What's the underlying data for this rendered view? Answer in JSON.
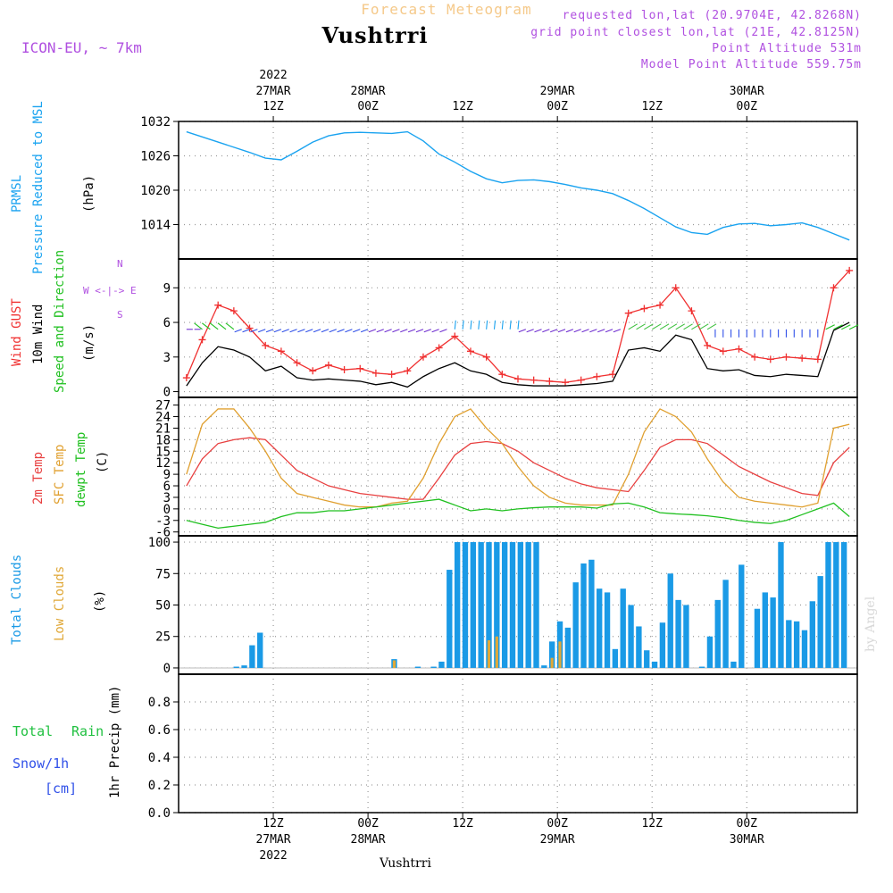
{
  "header": {
    "title": "Forecast Meteogram",
    "location": "Vushtrri",
    "model": "ICON-EU, ~ 7km",
    "requested": "requested lon,lat (20.9704E, 42.8268N)",
    "grid_point": "grid point closest lon,lat (21E, 42.8125N)",
    "point_altitude": "Point Altitude 531m",
    "model_altitude": "Model Point Altitude 559.75m",
    "footer_location": "Vushtrri",
    "watermark": "by Angel"
  },
  "time_axis": {
    "top_year": "2022",
    "ticks": [
      {
        "hour": 12,
        "top": "12Z",
        "date_top": "27MAR",
        "bottom": "12Z",
        "date_bottom": "27MAR",
        "year": "2022"
      },
      {
        "hour": 24,
        "top": "00Z",
        "date_top": "28MAR",
        "bottom": "00Z",
        "date_bottom": "28MAR",
        "year": ""
      },
      {
        "hour": 36,
        "top": "12Z",
        "date_top": "",
        "bottom": "12Z",
        "date_bottom": "",
        "year": ""
      },
      {
        "hour": 48,
        "top": "00Z",
        "date_top": "29MAR",
        "bottom": "00Z",
        "date_bottom": "29MAR",
        "year": ""
      },
      {
        "hour": 60,
        "top": "12Z",
        "date_top": "",
        "bottom": "12Z",
        "date_bottom": "",
        "year": ""
      },
      {
        "hour": 72,
        "top": "00Z",
        "date_top": "30MAR",
        "bottom": "00Z",
        "date_bottom": "30MAR",
        "year": ""
      }
    ]
  },
  "panels": {
    "pressure": {
      "label1": "PRMSL",
      "label2": "Pressure Reduced to MSL",
      "unit": "(hPa)"
    },
    "wind": {
      "gust": "Wind GUST",
      "wind10": "10m Wind",
      "speed_dir": "Speed and Direction",
      "unit": "(m/s)",
      "compass_n": "N",
      "compass_s": "S",
      "compass_we": "W <-|-> E"
    },
    "temp": {
      "t2m": "2m Temp",
      "sfc": "SFC Temp",
      "dew": "dewpt Temp",
      "unit": "(C)"
    },
    "clouds": {
      "total": "Total Clouds",
      "low": "Low Clouds",
      "unit": "(%)"
    },
    "precip": {
      "total": "Total",
      "rain": "Rain",
      "snow": "Snow/1h",
      "cm": "[cm]",
      "axis": "1hr Precip (mm)"
    }
  },
  "colors": {
    "pressure": "#1aa3f0",
    "gust": "#f03030",
    "wind10": "#000000",
    "t2m": "#e84040",
    "sfc": "#e0a030",
    "dew": "#20c020",
    "cloud_total": "#1a9ae6",
    "cloud_low": "#e0a838",
    "purple": "#b050e0",
    "rain": "#20c040",
    "snow": "#3050e8",
    "grid": "#9a9a9a"
  },
  "chart_data": [
    {
      "type": "line",
      "name": "pressure",
      "x_hours": [
        1,
        3,
        5,
        7,
        9,
        11,
        13,
        15,
        17,
        19,
        21,
        23,
        25,
        27,
        29,
        31,
        33,
        35,
        37,
        39,
        41,
        43,
        45,
        47,
        49,
        51,
        53,
        55,
        57,
        59,
        61,
        63,
        65,
        67,
        69,
        71,
        73,
        75,
        77,
        79,
        81,
        83,
        85
      ],
      "values": [
        1030.2,
        1029.3,
        1028.4,
        1027.5,
        1026.6,
        1025.6,
        1025.3,
        1026.8,
        1028.4,
        1029.5,
        1030.0,
        1030.1,
        1030.0,
        1029.9,
        1030.2,
        1028.6,
        1026.3,
        1024.9,
        1023.3,
        1022.0,
        1021.3,
        1021.7,
        1021.8,
        1021.5,
        1021.0,
        1020.4,
        1020.0,
        1019.4,
        1018.2,
        1016.8,
        1015.2,
        1013.6,
        1012.6,
        1012.3,
        1013.5,
        1014.1,
        1014.2,
        1013.8,
        1014.0,
        1014.3,
        1013.5,
        1012.4,
        1011.3
      ],
      "ylim": [
        1008,
        1032
      ],
      "yticks": [
        1014,
        1020,
        1026,
        1032
      ]
    },
    {
      "type": "line",
      "name": "wind",
      "x_hours": [
        1,
        3,
        5,
        7,
        9,
        11,
        13,
        15,
        17,
        19,
        21,
        23,
        25,
        27,
        29,
        31,
        33,
        35,
        37,
        39,
        41,
        43,
        45,
        47,
        49,
        51,
        53,
        55,
        57,
        59,
        61,
        63,
        65,
        67,
        69,
        71,
        73,
        75,
        77,
        79,
        81,
        83,
        85
      ],
      "series": [
        {
          "key": "gust",
          "values": [
            1.2,
            4.5,
            7.5,
            7.0,
            5.5,
            4.0,
            3.5,
            2.5,
            1.8,
            2.3,
            1.9,
            2.0,
            1.6,
            1.5,
            1.8,
            3.0,
            3.8,
            4.8,
            3.5,
            3.0,
            1.5,
            1.1,
            1.0,
            0.9,
            0.8,
            1.0,
            1.3,
            1.5,
            6.8,
            7.2,
            7.5,
            9.0,
            7.0,
            4.0,
            3.5,
            3.7,
            3.0,
            2.8,
            3.0,
            2.9,
            2.8,
            9.0,
            10.5
          ]
        },
        {
          "key": "wind10",
          "values": [
            0.5,
            2.5,
            3.9,
            3.6,
            3.0,
            1.8,
            2.2,
            1.2,
            1.0,
            1.1,
            1.0,
            0.9,
            0.6,
            0.8,
            0.4,
            1.3,
            2.0,
            2.5,
            1.8,
            1.5,
            0.8,
            0.6,
            0.5,
            0.5,
            0.5,
            0.6,
            0.7,
            0.9,
            3.6,
            3.8,
            3.5,
            4.9,
            4.5,
            2.0,
            1.8,
            1.9,
            1.4,
            1.3,
            1.5,
            1.4,
            1.3,
            5.3,
            6.0
          ]
        }
      ],
      "ylim": [
        -0.5,
        11.5
      ],
      "yticks": [
        0,
        3,
        6,
        9
      ]
    },
    {
      "type": "line",
      "name": "temperature",
      "x_hours": [
        1,
        3,
        5,
        7,
        9,
        11,
        13,
        15,
        17,
        19,
        21,
        23,
        25,
        27,
        29,
        31,
        33,
        35,
        37,
        39,
        41,
        43,
        45,
        47,
        49,
        51,
        53,
        55,
        57,
        59,
        61,
        63,
        65,
        67,
        69,
        71,
        73,
        75,
        77,
        79,
        81,
        83,
        85
      ],
      "series": [
        {
          "key": "t2m",
          "values": [
            6,
            13,
            17,
            18,
            18.5,
            18,
            14,
            10,
            8,
            6,
            5,
            4,
            3.5,
            3,
            2.5,
            2.5,
            8,
            14,
            17,
            17.5,
            17,
            15,
            12,
            10,
            8,
            6.5,
            5.5,
            5,
            4.5,
            10,
            16,
            18,
            18,
            17,
            14,
            11,
            9,
            7,
            5.5,
            4,
            3.5,
            12,
            16
          ]
        },
        {
          "key": "sfc",
          "values": [
            9,
            22,
            26,
            26,
            21,
            15,
            8,
            4,
            3,
            2,
            1,
            0.5,
            0.5,
            1.5,
            2,
            8,
            17,
            24,
            26,
            21,
            17,
            11,
            6,
            3,
            1.5,
            1,
            1,
            1,
            9,
            20,
            26,
            24,
            20,
            13,
            7,
            3,
            2,
            1.5,
            1,
            0.5,
            1.5,
            21,
            22
          ]
        },
        {
          "key": "dew",
          "values": [
            -3,
            -4,
            -5,
            -4.5,
            -4,
            -3.5,
            -2,
            -1,
            -1,
            -0.5,
            -0.5,
            0,
            0.5,
            1,
            1.5,
            2,
            2.5,
            1,
            -0.5,
            0,
            -0.5,
            0,
            0.3,
            0.5,
            0.5,
            0.5,
            0.2,
            1.3,
            1.5,
            0.5,
            -1,
            -1.3,
            -1.5,
            -1.8,
            -2.3,
            -3,
            -3.5,
            -3.8,
            -3,
            -1.5,
            0,
            1.5,
            -2
          ]
        }
      ],
      "ylim": [
        -7,
        29
      ],
      "yticks": [
        -6,
        -3,
        0,
        3,
        6,
        9,
        12,
        15,
        18,
        21,
        24,
        27
      ]
    },
    {
      "type": "bar",
      "name": "clouds",
      "x_hours": [
        1,
        2,
        3,
        4,
        5,
        6,
        7,
        8,
        9,
        10,
        11,
        12,
        13,
        14,
        15,
        16,
        17,
        18,
        19,
        20,
        21,
        22,
        23,
        24,
        25,
        26,
        27,
        28,
        29,
        30,
        31,
        32,
        33,
        34,
        35,
        36,
        37,
        38,
        39,
        40,
        41,
        42,
        43,
        44,
        45,
        46,
        47,
        48,
        49,
        50,
        51,
        52,
        53,
        54,
        55,
        56,
        57,
        58,
        59,
        60,
        61,
        62,
        63,
        64,
        65,
        66,
        67,
        68,
        69,
        70,
        71,
        72,
        73,
        74,
        75,
        76,
        77,
        78,
        79,
        80,
        81,
        82,
        83,
        84,
        85,
        86
      ],
      "series": [
        {
          "key": "total",
          "values": [
            0,
            0,
            0,
            0,
            0,
            0,
            0,
            1,
            2,
            18,
            28,
            0,
            0,
            0,
            0,
            0,
            0,
            0,
            0,
            0,
            0,
            0,
            0,
            0,
            0,
            0,
            0,
            7,
            0,
            0,
            1,
            0,
            1,
            5,
            78,
            100,
            100,
            100,
            100,
            100,
            100,
            100,
            100,
            100,
            100,
            100,
            2,
            21,
            37,
            32,
            68,
            83,
            86,
            63,
            60,
            15,
            63,
            50,
            33,
            14,
            5,
            36,
            75,
            54,
            50,
            0,
            1,
            25,
            54,
            70,
            5,
            82,
            0,
            47,
            60,
            56,
            100,
            38,
            37,
            30,
            53,
            73,
            100,
            100,
            100,
            0
          ]
        },
        {
          "key": "low",
          "values": [
            0,
            0,
            0,
            0,
            0,
            0,
            0,
            0,
            0,
            0,
            0,
            0,
            0,
            0,
            0,
            0,
            0,
            0,
            0,
            0,
            0,
            0,
            0,
            0,
            0,
            0,
            0,
            6,
            0,
            0,
            0,
            0,
            0,
            0,
            0,
            0,
            0,
            0,
            0,
            22,
            25,
            0,
            0,
            0,
            0,
            0,
            0,
            8,
            21,
            0,
            0,
            0,
            0,
            0,
            0,
            0,
            0,
            0,
            0,
            0,
            0,
            0,
            0,
            0,
            0,
            0,
            0,
            0,
            0,
            0,
            0,
            0,
            0,
            0,
            0,
            0,
            0,
            0,
            0,
            0,
            0,
            0,
            0,
            0,
            0,
            0
          ]
        }
      ],
      "ylim": [
        -5,
        105
      ],
      "yticks": [
        0,
        25,
        50,
        75,
        100
      ]
    },
    {
      "type": "bar",
      "name": "precipitation",
      "series": [
        {
          "key": "rain",
          "values": []
        }
      ],
      "ylim": [
        0,
        1.0
      ],
      "yticks": [
        0,
        0.2,
        0.4,
        0.6,
        0.8
      ]
    }
  ]
}
